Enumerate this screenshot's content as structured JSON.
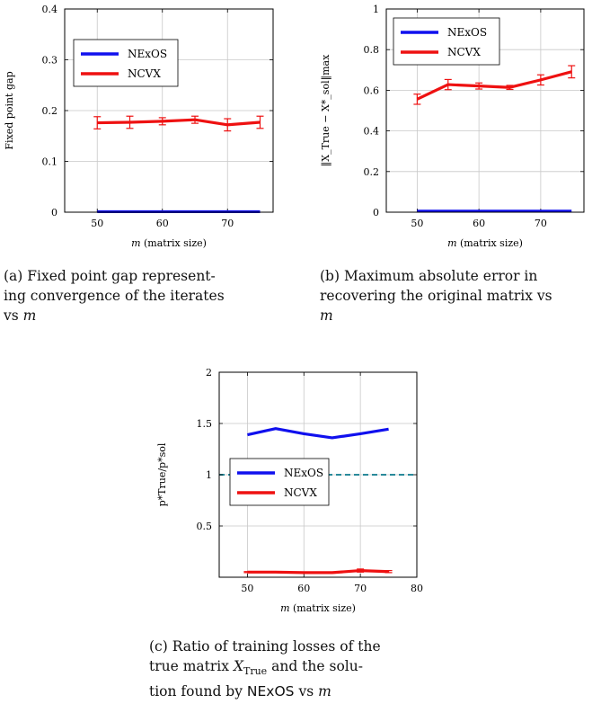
{
  "colors": {
    "nexos": "#1010ee",
    "ncvx": "#ee1111",
    "ref": "#2a8a9a",
    "grid": "#c8c8c8"
  },
  "chart_data": [
    {
      "id": "a",
      "type": "line",
      "ylabel": "Fixed point gap",
      "xlabel_var": "m",
      "xlabel_rest": " (matrix size)",
      "xlim": [
        45,
        77
      ],
      "ylim": [
        0,
        0.4
      ],
      "xticks": [
        50,
        60,
        70
      ],
      "yticks": [
        0,
        0.1,
        0.2,
        0.3,
        0.4
      ],
      "ytick_labels": [
        "0",
        "0.1",
        "0.2",
        "0.3",
        "0.4"
      ],
      "xtick_labels": [
        "50",
        "60",
        "70"
      ],
      "legend_position": "upper-left",
      "series": [
        {
          "name": "NExOS",
          "x": [
            50,
            55,
            60,
            65,
            70,
            75
          ],
          "y": [
            0.001,
            0.001,
            0.001,
            0.001,
            0.001,
            0.001
          ],
          "err": [
            0,
            0,
            0,
            0,
            0,
            0
          ]
        },
        {
          "name": "NCVX",
          "x": [
            50,
            55,
            60,
            65,
            70,
            75
          ],
          "y": [
            0.176,
            0.177,
            0.179,
            0.182,
            0.172,
            0.177
          ],
          "err": [
            0.012,
            0.012,
            0.007,
            0.007,
            0.012,
            0.012
          ]
        }
      ]
    },
    {
      "id": "b",
      "type": "line",
      "ylabel": "‖X_True − X*_sol‖max",
      "xlabel_var": "m",
      "xlabel_rest": " (matrix size)",
      "xlim": [
        45,
        77
      ],
      "ylim": [
        0,
        1
      ],
      "xticks": [
        50,
        60,
        70
      ],
      "yticks": [
        0,
        0.2,
        0.4,
        0.6,
        0.8,
        1
      ],
      "ytick_labels": [
        "0",
        "0.2",
        "0.4",
        "0.6",
        "0.8",
        "1"
      ],
      "xtick_labels": [
        "50",
        "60",
        "70"
      ],
      "legend_position": "upper-left",
      "series": [
        {
          "name": "NExOS",
          "x": [
            50,
            55,
            60,
            65,
            70,
            75
          ],
          "y": [
            0.005,
            0.005,
            0.005,
            0.005,
            0.005,
            0.005
          ],
          "err": [
            0,
            0,
            0,
            0,
            0,
            0
          ]
        },
        {
          "name": "NCVX",
          "x": [
            50,
            55,
            60,
            65,
            70,
            75
          ],
          "y": [
            0.556,
            0.628,
            0.621,
            0.614,
            0.651,
            0.691
          ],
          "err": [
            0.025,
            0.025,
            0.015,
            0.01,
            0.025,
            0.03
          ]
        }
      ]
    },
    {
      "id": "c",
      "type": "line",
      "ylabel": "p*True/p*sol",
      "xlabel_var": "m",
      "xlabel_rest": " (matrix size)",
      "xlim": [
        45,
        80
      ],
      "ylim": [
        0,
        2
      ],
      "xticks": [
        50,
        60,
        70,
        80
      ],
      "yticks": [
        0.5,
        1,
        1.5,
        2
      ],
      "ytick_labels": [
        "0.5",
        "1",
        "1.5",
        "2"
      ],
      "xtick_labels": [
        "50",
        "60",
        "70",
        "80"
      ],
      "legend_position": "center-left",
      "ref_line": 1,
      "series": [
        {
          "name": "NExOS",
          "x": [
            50,
            55,
            60,
            65,
            70,
            75
          ],
          "y": [
            1.39,
            1.45,
            1.4,
            1.36,
            1.4,
            1.445
          ],
          "err": [
            0,
            0,
            0,
            0,
            0,
            0
          ]
        },
        {
          "name": "NCVX",
          "x": [
            50,
            55,
            60,
            65,
            70,
            75
          ],
          "y": [
            0.05,
            0.05,
            0.045,
            0.045,
            0.065,
            0.055
          ],
          "err": [
            0.005,
            0.005,
            0.005,
            0.005,
            0.015,
            0.01
          ]
        }
      ]
    }
  ],
  "captions": {
    "a": [
      "(a) Fixed point gap represent-",
      "ing convergence of the iterates",
      "vs "
    ],
    "a_var": "m",
    "b": [
      "(b) Maximum absolute error in",
      "recovering the original matrix vs",
      ""
    ],
    "b_var": "m",
    "c": [
      "(c) Ratio of training losses of the",
      "true matrix ",
      " and the solu-",
      "tion found by ",
      " vs "
    ],
    "c_matrix": "X",
    "c_matrix_sub": "True",
    "c_method": "NExOS",
    "c_var": "m"
  }
}
